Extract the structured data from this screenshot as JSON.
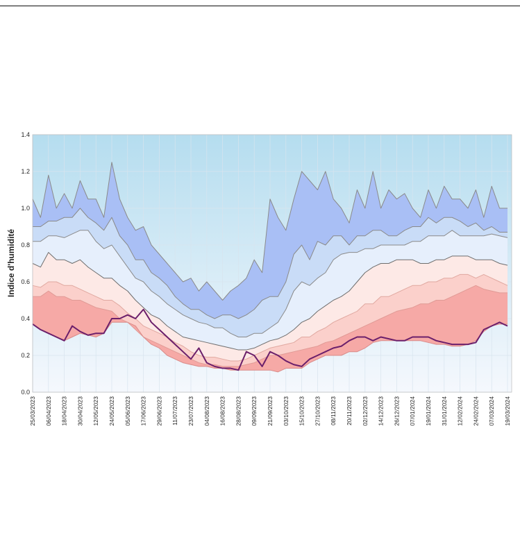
{
  "chart_data": {
    "type": "band",
    "y_label": "Indice d'humidité",
    "x": [
      "25/03/2023",
      "31/03/2023",
      "06/04/2023",
      "12/04/2023",
      "18/04/2023",
      "24/04/2023",
      "30/04/2023",
      "06/05/2023",
      "12/05/2023",
      "18/05/2023",
      "24/05/2023",
      "30/05/2023",
      "05/06/2023",
      "11/06/2023",
      "17/06/2023",
      "23/06/2023",
      "29/06/2023",
      "05/07/2023",
      "11/07/2023",
      "17/07/2023",
      "23/07/2023",
      "29/07/2023",
      "04/08/2023",
      "10/08/2023",
      "16/08/2023",
      "22/08/2023",
      "28/08/2023",
      "03/09/2023",
      "09/09/2023",
      "15/09/2023",
      "21/09/2023",
      "27/09/2023",
      "03/10/2023",
      "09/10/2023",
      "15/10/2023",
      "21/10/2023",
      "27/10/2023",
      "02/11/2023",
      "08/11/2023",
      "14/11/2023",
      "20/11/2023",
      "26/11/2023",
      "02/12/2023",
      "08/12/2023",
      "14/12/2023",
      "20/12/2023",
      "26/12/2023",
      "01/01/2024",
      "07/01/2024",
      "13/01/2024",
      "19/01/2024",
      "25/01/2024",
      "31/01/2024",
      "06/02/2024",
      "12/02/2024",
      "18/02/2024",
      "24/02/2024",
      "01/03/2024",
      "07/03/2024",
      "13/03/2024",
      "19/03/2024"
    ],
    "xlim": [
      "25/03/2023",
      "19/03/2024"
    ],
    "xticks": [
      "25/03/2023",
      "06/04/2023",
      "18/04/2023",
      "30/04/2023",
      "12/05/2023",
      "24/05/2023",
      "05/06/2023",
      "17/06/2023",
      "29/06/2023",
      "11/07/2023",
      "23/07/2023",
      "04/08/2023",
      "16/08/2023",
      "28/08/2023",
      "09/09/2023",
      "21/09/2023",
      "03/10/2023",
      "15/10/2023",
      "27/10/2023",
      "08/11/2023",
      "20/11/2023",
      "02/12/2023",
      "14/12/2023",
      "26/12/2023",
      "07/01/2024",
      "19/01/2024",
      "31/01/2024",
      "12/02/2024",
      "24/02/2024",
      "07/03/2024",
      "19/03/2024"
    ],
    "ylim": [
      0,
      1.4
    ],
    "yticks": [
      {
        "value": 0,
        "label": "0.0"
      },
      {
        "value": 0.2,
        "label": "0.2"
      },
      {
        "value": 0.4,
        "label": "0.4"
      },
      {
        "value": 0.6,
        "label": "0.6"
      },
      {
        "value": 0.8,
        "label": "0.8"
      },
      {
        "value": 1,
        "label": "1.0"
      },
      {
        "value": 1.2,
        "label": "1.2"
      },
      {
        "value": 1.4,
        "label": "1.4"
      }
    ],
    "grid": true,
    "series": [
      {
        "color": "#8a8a8a",
        "fill": "#a9bff5",
        "values": [
          1.05,
          0.95,
          1.18,
          1.0,
          1.08,
          1.0,
          1.15,
          1.05,
          1.05,
          0.95,
          1.25,
          1.05,
          0.95,
          0.88,
          0.9,
          0.8,
          0.75,
          0.7,
          0.65,
          0.6,
          0.62,
          0.55,
          0.6,
          0.55,
          0.5,
          0.55,
          0.58,
          0.62,
          0.72,
          0.65,
          1.05,
          0.95,
          0.88,
          1.05,
          1.2,
          1.15,
          1.1,
          1.2,
          1.05,
          1.0,
          0.92,
          1.1,
          1.0,
          1.2,
          1.0,
          1.1,
          1.05,
          1.08,
          1.0,
          0.95,
          1.1,
          1.0,
          1.12,
          1.05,
          1.05,
          1.0,
          1.1,
          0.95,
          1.12,
          1.0,
          1.0
        ]
      },
      {
        "color": "#8a8a8a",
        "fill": "#c9dcf7",
        "values": [
          0.9,
          0.9,
          0.93,
          0.93,
          0.95,
          0.95,
          1.0,
          0.95,
          0.92,
          0.88,
          0.95,
          0.85,
          0.8,
          0.72,
          0.72,
          0.65,
          0.62,
          0.58,
          0.52,
          0.48,
          0.45,
          0.45,
          0.42,
          0.4,
          0.42,
          0.42,
          0.4,
          0.42,
          0.45,
          0.5,
          0.52,
          0.52,
          0.6,
          0.75,
          0.8,
          0.72,
          0.82,
          0.8,
          0.85,
          0.85,
          0.8,
          0.85,
          0.85,
          0.88,
          0.88,
          0.85,
          0.85,
          0.88,
          0.9,
          0.9,
          0.95,
          0.92,
          0.95,
          0.95,
          0.93,
          0.9,
          0.92,
          0.88,
          0.9,
          0.87,
          0.87
        ]
      },
      {
        "color": "#8a8a8a",
        "fill": "#e6effc",
        "values": [
          0.82,
          0.82,
          0.85,
          0.85,
          0.84,
          0.86,
          0.88,
          0.88,
          0.82,
          0.78,
          0.8,
          0.74,
          0.68,
          0.62,
          0.6,
          0.55,
          0.52,
          0.48,
          0.45,
          0.42,
          0.4,
          0.38,
          0.37,
          0.35,
          0.35,
          0.32,
          0.3,
          0.3,
          0.32,
          0.32,
          0.35,
          0.38,
          0.45,
          0.55,
          0.6,
          0.58,
          0.62,
          0.65,
          0.72,
          0.75,
          0.76,
          0.76,
          0.78,
          0.78,
          0.8,
          0.8,
          0.8,
          0.8,
          0.82,
          0.82,
          0.85,
          0.85,
          0.85,
          0.88,
          0.85,
          0.85,
          0.85,
          0.85,
          0.86,
          0.85,
          0.84
        ]
      },
      {
        "color": "#6e6e6e",
        "fill": "#fde9e6",
        "values": [
          0.7,
          0.68,
          0.76,
          0.72,
          0.72,
          0.7,
          0.72,
          0.68,
          0.65,
          0.62,
          0.62,
          0.58,
          0.55,
          0.5,
          0.46,
          0.42,
          0.4,
          0.36,
          0.33,
          0.3,
          0.29,
          0.28,
          0.27,
          0.26,
          0.25,
          0.24,
          0.23,
          0.23,
          0.24,
          0.26,
          0.28,
          0.29,
          0.31,
          0.34,
          0.38,
          0.4,
          0.44,
          0.47,
          0.5,
          0.52,
          0.55,
          0.6,
          0.65,
          0.68,
          0.7,
          0.7,
          0.72,
          0.72,
          0.72,
          0.7,
          0.7,
          0.72,
          0.72,
          0.74,
          0.74,
          0.74,
          0.72,
          0.72,
          0.72,
          0.7,
          0.69
        ]
      },
      {
        "color": "#e0a8a0",
        "fill": "#fbd0cb",
        "values": [
          0.58,
          0.57,
          0.6,
          0.6,
          0.58,
          0.58,
          0.56,
          0.54,
          0.52,
          0.5,
          0.5,
          0.47,
          0.43,
          0.4,
          0.36,
          0.34,
          0.32,
          0.3,
          0.27,
          0.25,
          0.22,
          0.2,
          0.19,
          0.19,
          0.18,
          0.17,
          0.17,
          0.18,
          0.2,
          0.22,
          0.24,
          0.25,
          0.26,
          0.27,
          0.3,
          0.3,
          0.33,
          0.35,
          0.38,
          0.4,
          0.42,
          0.44,
          0.48,
          0.48,
          0.52,
          0.52,
          0.54,
          0.56,
          0.58,
          0.58,
          0.6,
          0.6,
          0.62,
          0.62,
          0.64,
          0.64,
          0.62,
          0.64,
          0.62,
          0.6,
          0.58
        ]
      },
      {
        "color": "#e09a95",
        "fill": "#f6a9a6",
        "values": [
          0.52,
          0.52,
          0.55,
          0.52,
          0.52,
          0.5,
          0.5,
          0.48,
          0.46,
          0.45,
          0.44,
          0.4,
          0.38,
          0.34,
          0.3,
          0.28,
          0.26,
          0.24,
          0.22,
          0.2,
          0.18,
          0.16,
          0.15,
          0.15,
          0.14,
          0.14,
          0.14,
          0.15,
          0.16,
          0.18,
          0.2,
          0.2,
          0.21,
          0.22,
          0.23,
          0.24,
          0.25,
          0.27,
          0.28,
          0.3,
          0.32,
          0.34,
          0.36,
          0.38,
          0.4,
          0.42,
          0.44,
          0.45,
          0.46,
          0.48,
          0.48,
          0.5,
          0.5,
          0.52,
          0.54,
          0.56,
          0.58,
          0.56,
          0.55,
          0.54,
          0.54
        ]
      },
      {
        "color": "#d98a88",
        "values": [
          0.37,
          0.34,
          0.32,
          0.3,
          0.28,
          0.3,
          0.32,
          0.31,
          0.3,
          0.32,
          0.38,
          0.38,
          0.38,
          0.36,
          0.3,
          0.26,
          0.24,
          0.2,
          0.18,
          0.16,
          0.15,
          0.14,
          0.14,
          0.13,
          0.13,
          0.12,
          0.12,
          0.12,
          0.12,
          0.12,
          0.12,
          0.11,
          0.13,
          0.13,
          0.13,
          0.16,
          0.18,
          0.2,
          0.2,
          0.2,
          0.22,
          0.22,
          0.24,
          0.27,
          0.28,
          0.28,
          0.28,
          0.28,
          0.28,
          0.28,
          0.27,
          0.26,
          0.26,
          0.25,
          0.25,
          0.26,
          0.28,
          0.33,
          0.36,
          0.37,
          0.37
        ]
      },
      {
        "color": "#6b1f6b",
        "width": 2,
        "values": [
          0.37,
          0.34,
          0.32,
          0.3,
          0.28,
          0.36,
          0.33,
          0.31,
          0.32,
          0.32,
          0.4,
          0.4,
          0.42,
          0.4,
          0.45,
          0.38,
          0.34,
          0.3,
          0.26,
          0.22,
          0.18,
          0.24,
          0.16,
          0.14,
          0.13,
          0.13,
          0.12,
          0.22,
          0.2,
          0.14,
          0.22,
          0.2,
          0.17,
          0.15,
          0.14,
          0.18,
          0.2,
          0.22,
          0.24,
          0.25,
          0.28,
          0.3,
          0.3,
          0.28,
          0.3,
          0.29,
          0.28,
          0.28,
          0.3,
          0.3,
          0.3,
          0.28,
          0.27,
          0.26,
          0.26,
          0.26,
          0.27,
          0.34,
          0.36,
          0.38,
          0.36
        ]
      }
    ]
  }
}
